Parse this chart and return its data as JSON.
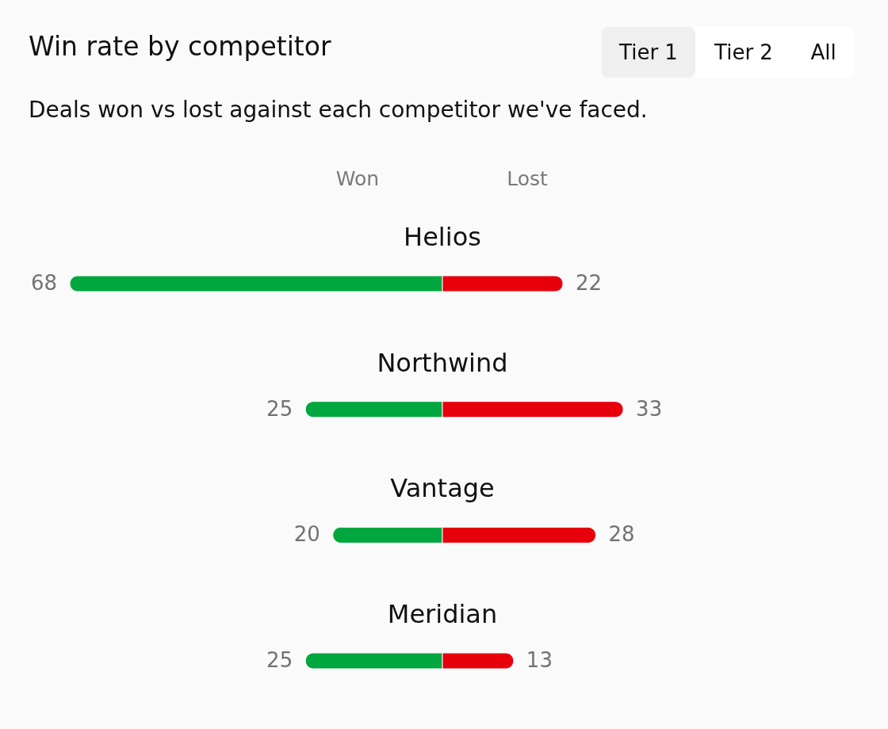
{
  "chart_data": [
    {
      "type": "bar",
      "orientation": "horizontal",
      "title": "Win rate by competitor",
      "subtitle": "Deals won vs lost against each competitor we've faced.",
      "categories": [
        "Helios",
        "Northwind",
        "Vantage",
        "Meridian"
      ],
      "series": [
        {
          "name": "Won",
          "color": "#00a63e",
          "values": [
            68,
            25,
            20,
            25
          ]
        }
      ],
      "xlim": [
        68,
        0
      ],
      "data_labels": true,
      "annotations": [
        "Tier 1",
        "Tier 2",
        "All"
      ]
    },
    {
      "type": "bar",
      "orientation": "horizontal",
      "categories": [
        null,
        null,
        null,
        null
      ],
      "series": [
        {
          "name": "Lost",
          "color": "#e7000b",
          "values": [
            22,
            33,
            28,
            13
          ]
        }
      ],
      "data_labels": true
    }
  ]
}
